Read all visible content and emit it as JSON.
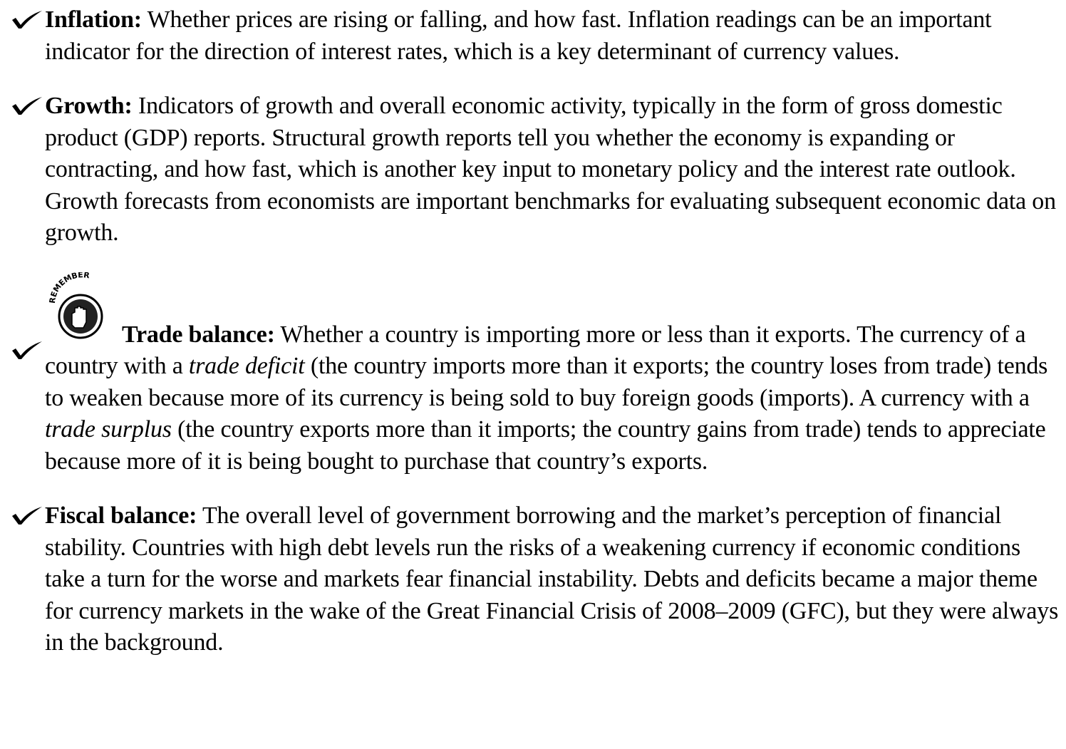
{
  "items": [
    {
      "term": "Inflation:",
      "parts": [
        {
          "text": " Whether prices are rising or falling, and how fast. Inflation readings can be an important indicator for the direction of interest rates, which is a key determinant of currency values."
        }
      ]
    },
    {
      "term": "Growth:",
      "parts": [
        {
          "text": " Indicators of growth and overall economic activity, typically in the form of gross domestic product (GDP) reports. Structural growth reports tell you whether the economy is expanding or contracting, and how fast, which is another key input to monetary policy and the interest rate outlook. Growth forecasts from economists are important benchmarks for evaluating subsequent economic data on growth."
        }
      ]
    },
    {
      "icon": "REMEMBER",
      "term": "Trade balance:",
      "parts": [
        {
          "text": " Whether a country is importing more or less than it exports. The currency of a country with a "
        },
        {
          "text": "trade deficit",
          "italic": true
        },
        {
          "text": " (the country imports more than it exports; the country loses from trade) tends to weaken because more of its currency is being sold to buy foreign goods (imports). A currency with a "
        },
        {
          "text": "trade surplus",
          "italic": true
        },
        {
          "text": " (the country exports more than it imports; the country gains from trade) tends to appreciate because more of it is being bought to purchase that country’s exports."
        }
      ]
    },
    {
      "term": "Fiscal balance:",
      "parts": [
        {
          "text": " The overall level of government borrowing and the market’s perception of financial stability. Countries with high debt levels run the risks of a weakening currency if economic conditions take a turn for the worse and markets fear financial instability. Debts and deficits became a major theme for currency markets in the wake of the Great Financial Crisis of 2008–2009 (GFC), but they were always in the background."
        }
      ]
    }
  ]
}
